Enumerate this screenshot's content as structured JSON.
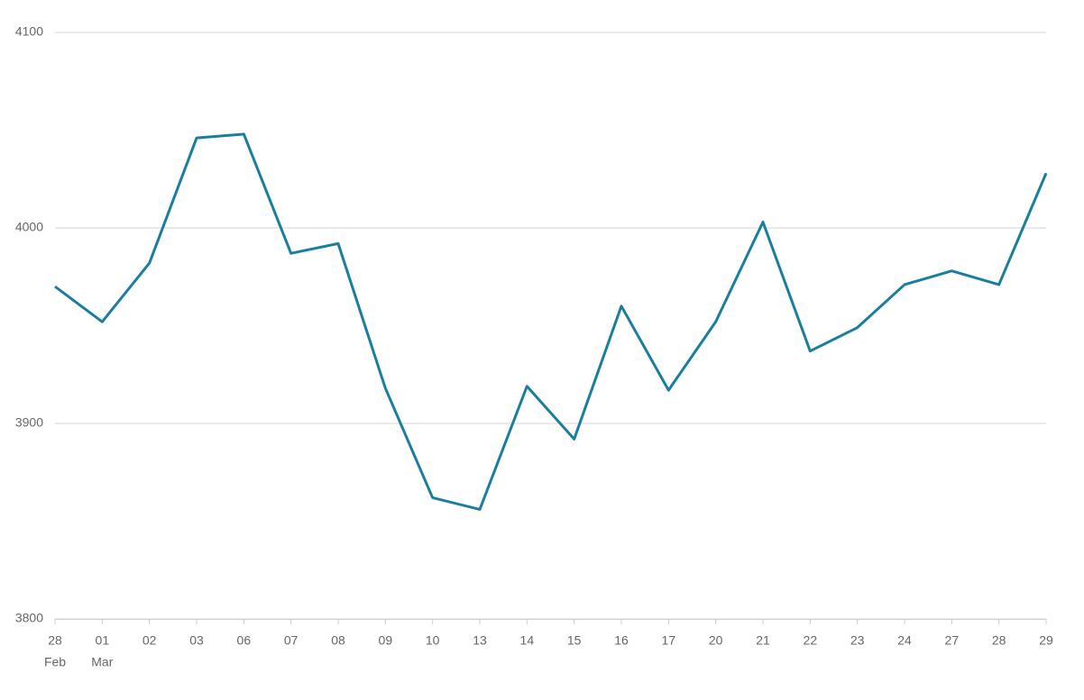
{
  "chart_data": {
    "type": "line",
    "categories": [
      "28",
      "01",
      "02",
      "03",
      "06",
      "07",
      "08",
      "09",
      "10",
      "13",
      "14",
      "15",
      "16",
      "17",
      "20",
      "21",
      "22",
      "23",
      "24",
      "27",
      "28",
      "29"
    ],
    "months": [
      "Feb",
      "Mar",
      null,
      null,
      null,
      null,
      null,
      null,
      null,
      null,
      null,
      null,
      null,
      null,
      null,
      null,
      null,
      null,
      null,
      null,
      null,
      null
    ],
    "series": [
      {
        "color": "#1a7f9e",
        "values": [
          3970,
          3952,
          3982,
          4046,
          4048,
          3987,
          3992,
          3918,
          3862,
          3856,
          3919,
          3892,
          3960,
          3917,
          3952,
          4003,
          3937,
          3949,
          3971,
          3978,
          3971,
          4028
        ]
      }
    ],
    "ylim": [
      3800,
      4100
    ],
    "yticks": [
      3800,
      3900,
      4000,
      4100
    ],
    "grid": true
  }
}
